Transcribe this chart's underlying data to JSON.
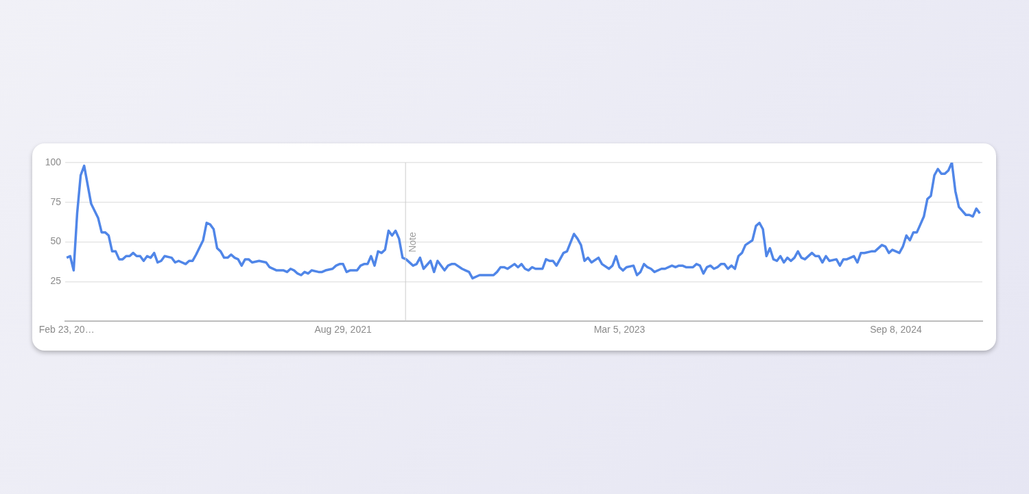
{
  "chart_data": {
    "type": "line",
    "x": [
      "2020-02-23",
      "2020-03-01",
      "2020-03-08",
      "2020-03-15",
      "2020-03-22",
      "2020-03-29",
      "2020-04-12",
      "2020-04-26",
      "2020-05-03",
      "2020-05-10",
      "2020-05-17",
      "2020-05-24",
      "2020-05-31",
      "2020-06-07",
      "2020-06-14",
      "2020-06-21",
      "2020-06-28",
      "2020-07-05",
      "2020-07-12",
      "2020-07-19",
      "2020-07-26",
      "2020-08-02",
      "2020-08-09",
      "2020-08-16",
      "2020-08-23",
      "2020-08-30",
      "2020-09-06",
      "2020-09-20",
      "2020-09-27",
      "2020-10-04",
      "2020-10-18",
      "2020-10-25",
      "2020-11-01",
      "2020-11-08",
      "2020-11-22",
      "2020-11-29",
      "2020-12-06",
      "2020-12-13",
      "2020-12-20",
      "2020-12-27",
      "2021-01-03",
      "2021-01-10",
      "2021-01-17",
      "2021-01-24",
      "2021-01-31",
      "2021-02-07",
      "2021-02-14",
      "2021-02-21",
      "2021-02-28",
      "2021-03-14",
      "2021-03-28",
      "2021-04-04",
      "2021-04-18",
      "2021-05-02",
      "2021-05-09",
      "2021-05-16",
      "2021-05-23",
      "2021-05-30",
      "2021-06-06",
      "2021-06-13",
      "2021-06-20",
      "2021-06-27",
      "2021-07-11",
      "2021-07-18",
      "2021-07-25",
      "2021-08-08",
      "2021-08-15",
      "2021-08-22",
      "2021-08-29",
      "2021-09-05",
      "2021-09-12",
      "2021-09-26",
      "2021-10-03",
      "2021-10-10",
      "2021-10-17",
      "2021-10-24",
      "2021-10-31",
      "2021-11-07",
      "2021-11-14",
      "2021-11-21",
      "2021-11-28",
      "2021-12-05",
      "2021-12-12",
      "2021-12-19",
      "2021-12-26",
      "2022-01-02",
      "2022-01-16",
      "2022-01-23",
      "2022-01-30",
      "2022-02-06",
      "2022-02-20",
      "2022-02-27",
      "2022-03-06",
      "2022-03-20",
      "2022-03-27",
      "2022-04-03",
      "2022-04-10",
      "2022-04-24",
      "2022-05-01",
      "2022-05-08",
      "2022-05-15",
      "2022-05-29",
      "2022-06-26",
      "2022-07-03",
      "2022-07-10",
      "2022-07-17",
      "2022-07-24",
      "2022-08-07",
      "2022-08-14",
      "2022-08-21",
      "2022-08-28",
      "2022-09-04",
      "2022-09-11",
      "2022-09-18",
      "2022-10-02",
      "2022-10-09",
      "2022-10-16",
      "2022-10-23",
      "2022-10-30",
      "2022-11-13",
      "2022-11-20",
      "2022-12-04",
      "2022-12-11",
      "2022-12-18",
      "2022-12-25",
      "2023-01-01",
      "2023-01-08",
      "2023-01-22",
      "2023-01-29",
      "2023-02-12",
      "2023-02-19",
      "2023-02-26",
      "2023-03-05",
      "2023-03-12",
      "2023-03-19",
      "2023-04-02",
      "2023-04-09",
      "2023-04-16",
      "2023-04-23",
      "2023-04-30",
      "2023-05-07",
      "2023-05-14",
      "2023-05-28",
      "2023-06-04",
      "2023-06-18",
      "2023-06-25",
      "2023-07-02",
      "2023-07-09",
      "2023-07-16",
      "2023-07-30",
      "2023-08-06",
      "2023-08-13",
      "2023-08-20",
      "2023-08-27",
      "2023-09-03",
      "2023-09-10",
      "2023-09-17",
      "2023-09-24",
      "2023-10-01",
      "2023-10-08",
      "2023-10-15",
      "2023-10-22",
      "2023-10-29",
      "2023-11-05",
      "2023-11-12",
      "2023-11-26",
      "2023-12-03",
      "2023-12-10",
      "2023-12-17",
      "2023-12-24",
      "2023-12-31",
      "2024-01-07",
      "2024-01-14",
      "2024-01-21",
      "2024-01-28",
      "2024-02-04",
      "2024-02-11",
      "2024-02-18",
      "2024-02-25",
      "2024-03-03",
      "2024-03-10",
      "2024-03-24",
      "2024-03-31",
      "2024-04-07",
      "2024-04-14",
      "2024-04-21",
      "2024-04-28",
      "2024-05-12",
      "2024-05-19",
      "2024-05-26",
      "2024-06-02",
      "2024-06-16",
      "2024-06-23",
      "2024-06-30",
      "2024-07-07",
      "2024-07-21",
      "2024-07-28",
      "2024-08-11",
      "2024-08-18",
      "2024-08-25",
      "2024-09-01",
      "2024-09-15",
      "2024-09-22",
      "2024-09-29",
      "2024-10-06",
      "2024-10-13",
      "2024-10-20",
      "2024-10-27",
      "2024-11-03",
      "2024-11-10",
      "2024-11-17",
      "2024-11-24",
      "2024-12-01",
      "2024-12-08",
      "2024-12-15",
      "2024-12-22",
      "2024-12-29",
      "2025-01-05",
      "2025-01-12",
      "2025-01-26",
      "2025-02-02",
      "2025-02-09",
      "2025-02-16",
      "2025-02-23"
    ],
    "series": [
      {
        "color": "#5086e8",
        "values": [
          40,
          41,
          32,
          68,
          92,
          98,
          74,
          65,
          56,
          56,
          54,
          44,
          44,
          39,
          39,
          41,
          41,
          43,
          41,
          41,
          38,
          41,
          40,
          43,
          37,
          38,
          41,
          40,
          37,
          38,
          36,
          38,
          38,
          42,
          51,
          62,
          61,
          58,
          46,
          44,
          40,
          40,
          42,
          40,
          39,
          35,
          39,
          39,
          37,
          38,
          37,
          34,
          32,
          32,
          31,
          33,
          32,
          30,
          29,
          31,
          30,
          32,
          31,
          31,
          32,
          33,
          35,
          36,
          36,
          31,
          32,
          32,
          35,
          36,
          36,
          41,
          35,
          44,
          43,
          45,
          57,
          54,
          57,
          52,
          40,
          39,
          35,
          36,
          40,
          33,
          38,
          31,
          38,
          32,
          35,
          36,
          36,
          33,
          32,
          31,
          27,
          29,
          29,
          31,
          34,
          34,
          33,
          36,
          34,
          36,
          33,
          32,
          34,
          33,
          33,
          39,
          38,
          38,
          35,
          43,
          44,
          55,
          52,
          48,
          38,
          40,
          37,
          40,
          36,
          33,
          35,
          41,
          34,
          32,
          34,
          35,
          29,
          31,
          36,
          34,
          33,
          31,
          33,
          33,
          35,
          34,
          35,
          35,
          34,
          34,
          36,
          35,
          30,
          34,
          35,
          33,
          34,
          36,
          36,
          33,
          35,
          33,
          41,
          43,
          48,
          51,
          60,
          62,
          58,
          41,
          46,
          39,
          38,
          41,
          37,
          40,
          38,
          40,
          44,
          40,
          39,
          43,
          41,
          41,
          37,
          41,
          38,
          39,
          35,
          39,
          39,
          41,
          37,
          43,
          43,
          44,
          44,
          48,
          47,
          43,
          45,
          43,
          47,
          54,
          51,
          56,
          56,
          61,
          66,
          77,
          79,
          92,
          96,
          93,
          93,
          95,
          100,
          82,
          72,
          67,
          67,
          66,
          71,
          68
        ]
      }
    ],
    "xlim": [
      "2020-02-20",
      "2025-02-28"
    ],
    "xticks": [
      {
        "value": "2020-02-23",
        "label": "Feb 23, 20…"
      },
      {
        "value": "2021-08-29",
        "label": "Aug 29, 2021"
      },
      {
        "value": "2023-03-05",
        "label": "Mar 5, 2023"
      },
      {
        "value": "2024-09-08",
        "label": "Sep 8, 2024"
      }
    ],
    "ylim": [
      0,
      100
    ],
    "yticks": [
      25,
      50,
      75,
      100
    ],
    "grid": "y",
    "ref_lines": [
      {
        "axis": "x",
        "value": "2022-01-01",
        "label": "Note",
        "color": "#cccccc"
      }
    ]
  }
}
